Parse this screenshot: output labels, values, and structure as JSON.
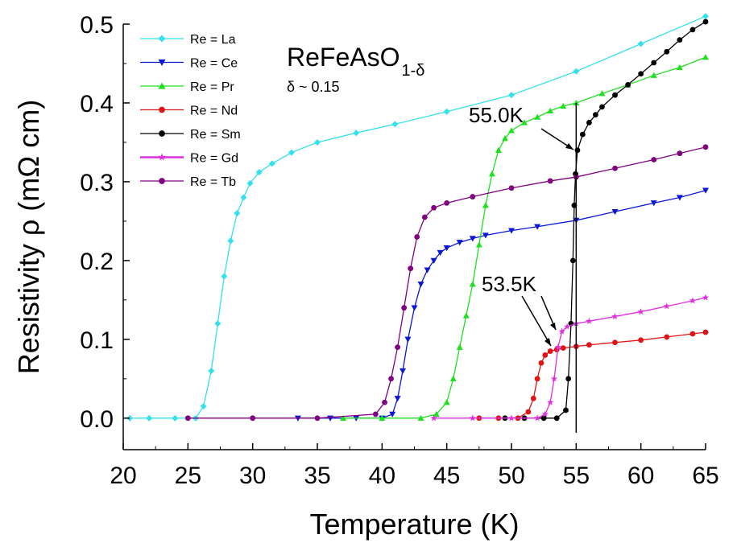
{
  "chart_data": {
    "type": "line",
    "title": "",
    "xlabel": "Temperature (K)",
    "ylabel": "Resistivity ρ (mΩ cm)",
    "xlim": [
      20,
      65
    ],
    "ylim": [
      -0.04,
      0.5
    ],
    "xticks": [
      20,
      25,
      30,
      35,
      40,
      45,
      50,
      55,
      60,
      65
    ],
    "xtick_labels": [
      "20",
      "25",
      "30",
      "35",
      "40",
      "45",
      "50",
      "55",
      "60",
      "65"
    ],
    "yticks": [
      0.0,
      0.1,
      0.2,
      0.3,
      0.4,
      0.5
    ],
    "ytick_labels": [
      "0.0",
      "0.1",
      "0.2",
      "0.3",
      "0.4",
      "0.5"
    ],
    "legend_position": "top-left",
    "series": [
      {
        "name": "Re = La",
        "color": "#33e0ee",
        "marker": "diamond",
        "x": [
          20.5,
          22,
          24,
          25.6,
          26.2,
          26.8,
          27.3,
          27.8,
          28.3,
          28.8,
          29.3,
          29.8,
          30.5,
          31.5,
          33,
          35,
          38,
          41,
          45,
          50,
          55,
          60,
          65
        ],
        "y": [
          0.0,
          0.0,
          0.0,
          0.0,
          0.015,
          0.06,
          0.12,
          0.18,
          0.225,
          0.26,
          0.28,
          0.298,
          0.312,
          0.323,
          0.337,
          0.35,
          0.362,
          0.373,
          0.389,
          0.41,
          0.44,
          0.475,
          0.51
        ]
      },
      {
        "name": "Re = Ce",
        "color": "#0a17d6",
        "marker": "triangle-down",
        "x": [
          33.5,
          36,
          38,
          40,
          40.8,
          41.2,
          41.6,
          42,
          42.5,
          43,
          43.5,
          44,
          44.5,
          45,
          46,
          47,
          48,
          50,
          52,
          55,
          58,
          61,
          63,
          65
        ],
        "y": [
          0.0,
          0.0,
          0.0,
          0.0,
          0.005,
          0.025,
          0.06,
          0.1,
          0.14,
          0.17,
          0.188,
          0.2,
          0.21,
          0.216,
          0.223,
          0.228,
          0.232,
          0.238,
          0.243,
          0.251,
          0.262,
          0.273,
          0.28,
          0.289
        ]
      },
      {
        "name": "Re = Pr",
        "color": "#1fe01f",
        "marker": "triangle-up",
        "x": [
          37,
          40,
          43,
          44.2,
          45,
          45.5,
          46,
          46.5,
          47,
          47.5,
          48,
          48.5,
          49,
          49.5,
          50,
          51,
          52,
          53,
          54,
          55,
          57,
          59,
          61,
          63,
          65
        ],
        "y": [
          0.0,
          0.0,
          0.0,
          0.005,
          0.02,
          0.05,
          0.09,
          0.13,
          0.17,
          0.22,
          0.27,
          0.31,
          0.34,
          0.355,
          0.365,
          0.375,
          0.382,
          0.39,
          0.396,
          0.4,
          0.412,
          0.423,
          0.435,
          0.445,
          0.458
        ]
      },
      {
        "name": "Re = Nd",
        "color": "#e01414",
        "marker": "circle",
        "x": [
          47.5,
          49,
          50.5,
          51.3,
          51.7,
          52,
          52.3,
          52.6,
          53,
          53.5,
          54,
          55,
          56,
          58,
          60,
          62,
          64,
          65
        ],
        "y": [
          0.0,
          0.0,
          0.0,
          0.008,
          0.025,
          0.05,
          0.07,
          0.08,
          0.085,
          0.087,
          0.089,
          0.091,
          0.093,
          0.096,
          0.099,
          0.103,
          0.107,
          0.109
        ]
      },
      {
        "name": "Re = Sm",
        "color": "#000000",
        "marker": "circle",
        "x": [
          49.5,
          51,
          52.5,
          53.5,
          54.2,
          54.4,
          54.6,
          54.75,
          54.85,
          54.95,
          55.1,
          55.5,
          56,
          56.5,
          57,
          58,
          59,
          60,
          61,
          62,
          63,
          64,
          65
        ],
        "y": [
          0.0,
          0.0,
          0.0,
          0.0,
          0.01,
          0.05,
          0.12,
          0.2,
          0.27,
          0.31,
          0.34,
          0.36,
          0.375,
          0.385,
          0.395,
          0.41,
          0.423,
          0.437,
          0.451,
          0.465,
          0.48,
          0.493,
          0.503
        ]
      },
      {
        "name": "Re = Gd",
        "color": "#e02ee0",
        "marker": "star",
        "x": [
          44,
          47,
          50,
          52,
          52.6,
          53,
          53.3,
          53.6,
          53.9,
          54.3,
          55,
          56,
          58,
          60,
          62,
          64,
          65
        ],
        "y": [
          0.0,
          0.0,
          0.0,
          0.0,
          0.005,
          0.02,
          0.05,
          0.09,
          0.11,
          0.116,
          0.12,
          0.123,
          0.129,
          0.135,
          0.142,
          0.149,
          0.153
        ]
      },
      {
        "name": "Re = Tb",
        "color": "#800080",
        "marker": "circle",
        "x": [
          25,
          30,
          35,
          39.5,
          40.2,
          40.7,
          41.2,
          41.7,
          42.2,
          42.7,
          43.3,
          44,
          45,
          47,
          50,
          53,
          55,
          58,
          61,
          63,
          65
        ],
        "y": [
          0.0,
          0.0,
          0.0,
          0.005,
          0.02,
          0.05,
          0.09,
          0.14,
          0.19,
          0.23,
          0.255,
          0.267,
          0.273,
          0.281,
          0.292,
          0.301,
          0.306,
          0.317,
          0.328,
          0.336,
          0.344
        ]
      }
    ],
    "annotations": {
      "compound_main": "ReFeAsO",
      "compound_sub": "1-δ",
      "delta_note": "δ ~ 0.15",
      "label_high_tc": "55.0K",
      "label_low_tc": "53.5K",
      "vline_x": 55
    }
  }
}
